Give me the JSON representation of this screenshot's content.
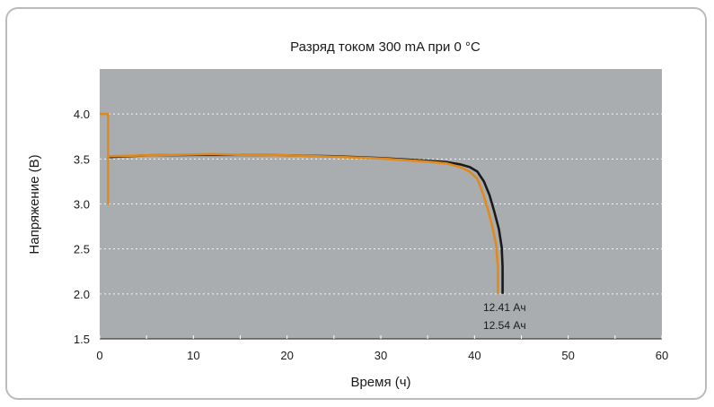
{
  "chart_data": {
    "type": "line",
    "title": "Разряд током 300 mA при 0 °C",
    "xlabel": "Время (ч)",
    "ylabel": "Напряжение (B)",
    "xlim": [
      0,
      60
    ],
    "ylim": [
      1.5,
      4.5
    ],
    "xticks": [
      0,
      10,
      20,
      30,
      40,
      50,
      60
    ],
    "yticks": [
      1.5,
      2.0,
      2.5,
      3.0,
      3.5,
      4.0
    ],
    "xtick_labels": [
      "0",
      "10",
      "20",
      "30",
      "40",
      "50",
      "60"
    ],
    "ytick_labels": [
      "1.5",
      "2.0",
      "2.5",
      "3.0",
      "3.5",
      "4.0"
    ],
    "grid": "horizontal dashed",
    "background_color": "#a9adb0",
    "series": [
      {
        "color": "#1a1a1a",
        "points": [
          [
            0.8,
            3.52
          ],
          [
            5,
            3.54
          ],
          [
            10,
            3.545
          ],
          [
            15,
            3.545
          ],
          [
            20,
            3.54
          ],
          [
            25,
            3.53
          ],
          [
            30,
            3.51
          ],
          [
            35,
            3.48
          ],
          [
            37,
            3.465
          ],
          [
            38.5,
            3.44
          ],
          [
            39.5,
            3.41
          ],
          [
            40.3,
            3.36
          ],
          [
            41,
            3.25
          ],
          [
            41.6,
            3.1
          ],
          [
            42.1,
            2.92
          ],
          [
            42.6,
            2.72
          ],
          [
            42.9,
            2.52
          ],
          [
            43.0,
            2.3
          ],
          [
            43.0,
            2.0
          ]
        ]
      },
      {
        "color": "#e08a1e",
        "points": [
          [
            0,
            4.0
          ],
          [
            0.9,
            4.0
          ],
          [
            0.9,
            3.0
          ],
          [
            0.9,
            3.53
          ],
          [
            5,
            3.54
          ],
          [
            10,
            3.55
          ],
          [
            12,
            3.555
          ],
          [
            15,
            3.545
          ],
          [
            20,
            3.54
          ],
          [
            25,
            3.525
          ],
          [
            30,
            3.505
          ],
          [
            35,
            3.47
          ],
          [
            37,
            3.45
          ],
          [
            38.5,
            3.41
          ],
          [
            39.5,
            3.36
          ],
          [
            40.3,
            3.28
          ],
          [
            40.9,
            3.12
          ],
          [
            41.4,
            2.95
          ],
          [
            41.9,
            2.75
          ],
          [
            42.3,
            2.55
          ],
          [
            42.5,
            2.3
          ],
          [
            42.5,
            2.0
          ]
        ]
      }
    ],
    "annotations": [
      "12.41 Ач",
      "12.54 Ач"
    ]
  }
}
